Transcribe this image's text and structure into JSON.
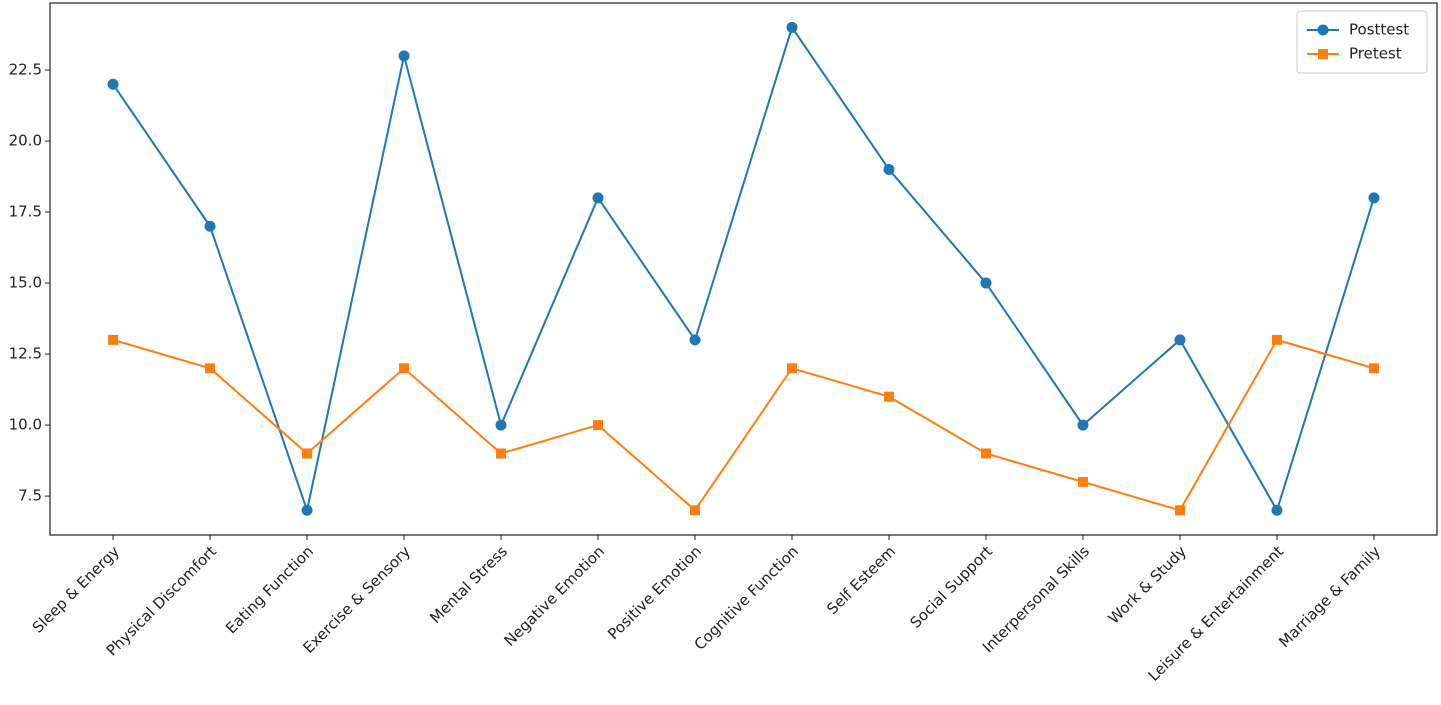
{
  "chart_data": {
    "type": "line",
    "categories": [
      "Sleep & Energy",
      "Physical Discomfort",
      "Eating Function",
      "Exercise & Sensory",
      "Mental Stress",
      "Negative Emotion",
      "Positive Emotion",
      "Cognitive Function",
      "Self Esteem",
      "Social Support",
      "Interpersonal Skills",
      "Work & Study",
      "Leisure & Entertainment",
      "Marriage & Family"
    ],
    "series": [
      {
        "name": "Posttest",
        "color": "#1f77b4",
        "marker": "circle",
        "values": [
          22,
          17,
          7,
          23,
          10,
          18,
          13,
          24,
          19,
          15,
          10,
          13,
          7,
          18
        ]
      },
      {
        "name": "Pretest",
        "color": "#ff7f0e",
        "marker": "square",
        "values": [
          13,
          12,
          9,
          12,
          9,
          10,
          7,
          12,
          11,
          9,
          8,
          7,
          13,
          12
        ]
      }
    ],
    "ylim": [
      6.13,
      24.86
    ],
    "yticks": [
      7.5,
      {
        "value": 10,
        "label": "10.0"
      },
      12.5,
      {
        "value": 15,
        "label": "15.0"
      },
      17.5,
      {
        "value": 20,
        "label": "20.0"
      },
      22.5
    ],
    "grid": false,
    "legend": "upper right"
  }
}
